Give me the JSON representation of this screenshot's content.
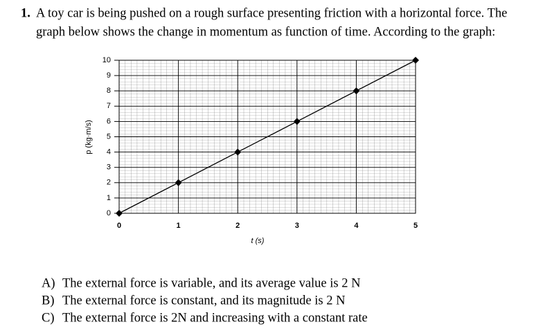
{
  "question": {
    "number": "1.",
    "lines": [
      "A toy car is being pushed on a rough surface presenting friction with a horizontal force. The",
      "graph below shows the change in momentum as function of time. According to the graph:"
    ]
  },
  "chart_data": {
    "type": "line",
    "x_label": "t (s)",
    "y_label": "p (kg·m/s)",
    "x": [
      0,
      1,
      2,
      3,
      4,
      5
    ],
    "series": [
      {
        "name": "p",
        "color": "#000000",
        "values": [
          0,
          2,
          4,
          6,
          8,
          10
        ]
      }
    ],
    "xlim": [
      0,
      5
    ],
    "ylim": [
      0,
      10
    ],
    "xticks": [
      0,
      1,
      2,
      3,
      4,
      5
    ],
    "yticks": [
      0,
      1,
      2,
      3,
      4,
      5,
      6,
      7,
      8,
      9,
      10
    ],
    "grid": true
  },
  "options": [
    {
      "label": "A)",
      "text": "The external force is variable, and its average value is 2 N"
    },
    {
      "label": "B)",
      "text": "The external force is constant, and its magnitude is 2 N"
    },
    {
      "label": "C)",
      "text": "The external force is 2N and increasing with a constant rate"
    }
  ]
}
